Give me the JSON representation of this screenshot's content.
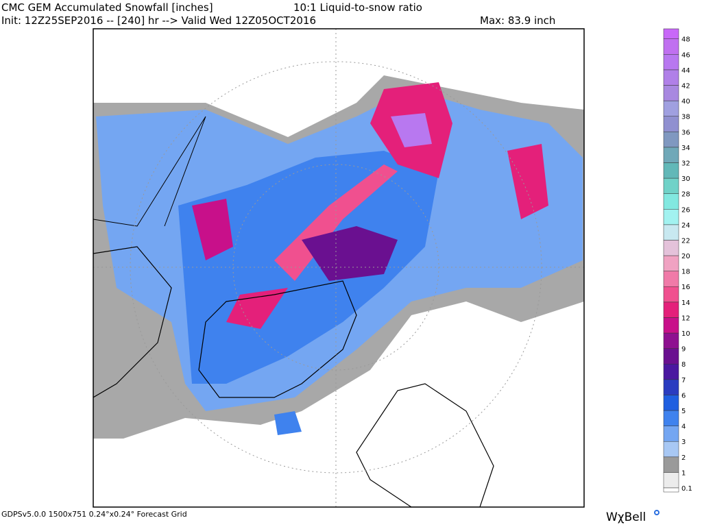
{
  "header": {
    "title": "CMC GEM Accumulated Snowfall [inches]",
    "ratio": "10:1 Liquid-to-snow ratio",
    "init": "Init: 12Z25SEP2016 -- [240] hr --> Valid Wed 12Z05OCT2016",
    "max": "Max: 83.9 inch"
  },
  "footer": {
    "grid": "GDPSv5.0.0 1500x751 0.24°x0.24° Forecast Grid",
    "brand": "WχBell"
  },
  "colorbar": [
    {
      "label": "0.1",
      "color": "#ececec"
    },
    {
      "label": "1",
      "color": "#9a9a9a"
    },
    {
      "label": "2",
      "color": "#a8c8f4"
    },
    {
      "label": "3",
      "color": "#74a6f2"
    },
    {
      "label": "4",
      "color": "#3f82ee"
    },
    {
      "label": "5",
      "color": "#1f5fe0"
    },
    {
      "label": "6",
      "color": "#2a3cc0"
    },
    {
      "label": "7",
      "color": "#4a18a0"
    },
    {
      "label": "8",
      "color": "#6a1090"
    },
    {
      "label": "9",
      "color": "#8e1090"
    },
    {
      "label": "10",
      "color": "#c8108a"
    },
    {
      "label": "12",
      "color": "#e4207a"
    },
    {
      "label": "14",
      "color": "#f0508f"
    },
    {
      "label": "16",
      "color": "#f07aa8"
    },
    {
      "label": "18",
      "color": "#f0a2c2"
    },
    {
      "label": "20",
      "color": "#e4c2da"
    },
    {
      "label": "22",
      "color": "#c8e8f0"
    },
    {
      "label": "24",
      "color": "#a2f2f0"
    },
    {
      "label": "26",
      "color": "#82e8e0"
    },
    {
      "label": "28",
      "color": "#70d2c8"
    },
    {
      "label": "30",
      "color": "#62b8b8"
    },
    {
      "label": "32",
      "color": "#70a8b8"
    },
    {
      "label": "34",
      "color": "#8098c0"
    },
    {
      "label": "36",
      "color": "#9090d0"
    },
    {
      "label": "38",
      "color": "#a0a0e0"
    },
    {
      "label": "40",
      "color": "#a888e0"
    },
    {
      "label": "42",
      "color": "#b080e8"
    },
    {
      "label": "44",
      "color": "#b878f0"
    },
    {
      "label": "46",
      "color": "#c070f0"
    },
    {
      "label": "48",
      "color": "#c868f8"
    }
  ]
}
